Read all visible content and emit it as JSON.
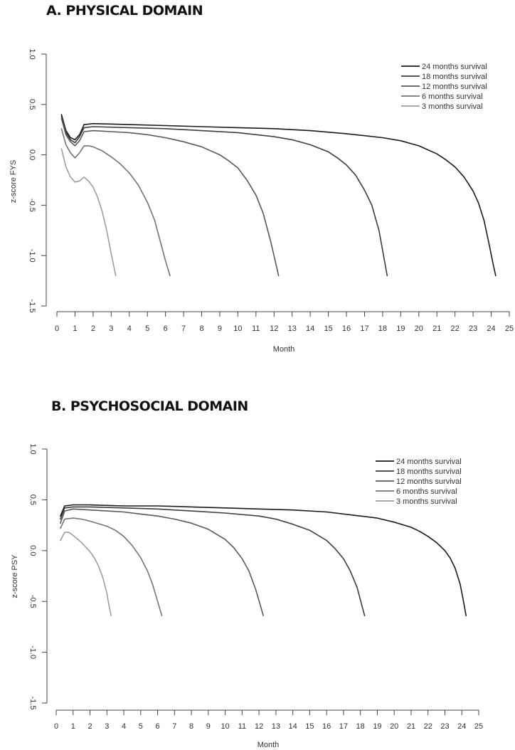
{
  "chart_data": [
    {
      "type": "line",
      "panel_title": "A. PHYSICAL DOMAIN",
      "xlabel": "Month",
      "ylabel": "z-score FYS",
      "xlim": [
        0,
        25
      ],
      "ylim": [
        -1.5,
        1.0
      ],
      "xticks": [
        "0",
        "1",
        "2",
        "3",
        "4",
        "5",
        "6",
        "7",
        "8",
        "9",
        "10",
        "11",
        "12",
        "13",
        "14",
        "15",
        "16",
        "17",
        "18",
        "19",
        "20",
        "21",
        "22",
        "23",
        "24",
        "25"
      ],
      "yticks": [
        "1.0",
        "0.5",
        "0.0",
        "-0.5",
        "-1.0",
        "-1.5"
      ],
      "legend_position": "top-right",
      "series": [
        {
          "name": "24 months survival",
          "color": "#1a1a1a",
          "x": [
            0.25,
            0.5,
            0.75,
            1,
            1.25,
            1.5,
            2,
            4,
            6,
            8,
            10,
            12,
            14,
            16,
            18,
            19,
            20,
            21,
            21.5,
            22,
            22.5,
            23,
            23.3,
            23.6,
            23.9,
            24.1,
            24.25
          ],
          "y": [
            0.4,
            0.24,
            0.17,
            0.15,
            0.2,
            0.3,
            0.31,
            0.3,
            0.29,
            0.28,
            0.27,
            0.26,
            0.24,
            0.21,
            0.17,
            0.14,
            0.09,
            0.01,
            -0.05,
            -0.12,
            -0.22,
            -0.36,
            -0.48,
            -0.65,
            -0.9,
            -1.08,
            -1.2
          ]
        },
        {
          "name": "18 months survival",
          "color": "#3d3d3d",
          "x": [
            0.25,
            0.5,
            0.75,
            1,
            1.25,
            1.5,
            2,
            4,
            6,
            8,
            10,
            12,
            13,
            14,
            15,
            15.5,
            16,
            16.5,
            17,
            17.4,
            17.8,
            18.1,
            18.25
          ],
          "y": [
            0.38,
            0.22,
            0.15,
            0.12,
            0.18,
            0.27,
            0.28,
            0.27,
            0.26,
            0.24,
            0.22,
            0.18,
            0.15,
            0.1,
            0.03,
            -0.03,
            -0.1,
            -0.2,
            -0.35,
            -0.5,
            -0.75,
            -1.05,
            -1.2
          ]
        },
        {
          "name": "12 months survival",
          "color": "#585858",
          "x": [
            0.25,
            0.5,
            0.75,
            1,
            1.25,
            1.5,
            2,
            3,
            4,
            5,
            6,
            7,
            8,
            9,
            9.5,
            10,
            10.5,
            11,
            11.4,
            11.8,
            12.1,
            12.25
          ],
          "y": [
            0.36,
            0.2,
            0.13,
            0.09,
            0.14,
            0.23,
            0.24,
            0.23,
            0.22,
            0.2,
            0.17,
            0.13,
            0.08,
            0.0,
            -0.06,
            -0.13,
            -0.25,
            -0.4,
            -0.58,
            -0.85,
            -1.08,
            -1.2
          ]
        },
        {
          "name": "6 months survival",
          "color": "#747474",
          "x": [
            0.25,
            0.5,
            0.75,
            1,
            1.25,
            1.5,
            1.75,
            2,
            2.5,
            3,
            3.5,
            4,
            4.5,
            5,
            5.4,
            5.7,
            6,
            6.25
          ],
          "y": [
            0.26,
            0.1,
            0.02,
            -0.03,
            0.02,
            0.09,
            0.09,
            0.08,
            0.04,
            -0.02,
            -0.09,
            -0.18,
            -0.3,
            -0.47,
            -0.65,
            -0.85,
            -1.05,
            -1.2
          ]
        },
        {
          "name": "3 months survival",
          "color": "#9e9e9e",
          "x": [
            0.25,
            0.5,
            0.75,
            1,
            1.25,
            1.5,
            1.75,
            2,
            2.25,
            2.5,
            2.75,
            3,
            3.25
          ],
          "y": [
            0.06,
            -0.12,
            -0.22,
            -0.27,
            -0.26,
            -0.22,
            -0.26,
            -0.32,
            -0.42,
            -0.56,
            -0.75,
            -0.98,
            -1.2
          ]
        }
      ]
    },
    {
      "type": "line",
      "panel_title": "B. PSYCHOSOCIAL DOMAIN",
      "xlabel": "Month",
      "ylabel": "z-score PSY",
      "xlim": [
        0,
        25
      ],
      "ylim": [
        -1.5,
        1.0
      ],
      "xticks": [
        "0",
        "1",
        "2",
        "3",
        "4",
        "5",
        "6",
        "7",
        "8",
        "9",
        "10",
        "11",
        "12",
        "13",
        "14",
        "15",
        "16",
        "17",
        "18",
        "19",
        "20",
        "21",
        "22",
        "23",
        "24",
        "25"
      ],
      "yticks": [
        "1.0",
        "0.5",
        "0.0",
        "-0.5",
        "-1.0",
        "-1.5"
      ],
      "legend_position": "top-right",
      "series": [
        {
          "name": "24 months survival",
          "color": "#1a1a1a",
          "x": [
            0.25,
            0.5,
            1,
            2,
            4,
            6,
            8,
            10,
            12,
            14,
            16,
            18,
            19,
            20,
            21,
            21.5,
            22,
            22.5,
            23,
            23.3,
            23.6,
            23.9,
            24.1,
            24.25
          ],
          "y": [
            0.34,
            0.44,
            0.45,
            0.45,
            0.44,
            0.44,
            0.43,
            0.42,
            0.41,
            0.4,
            0.38,
            0.34,
            0.32,
            0.28,
            0.23,
            0.19,
            0.14,
            0.08,
            0.0,
            -0.07,
            -0.17,
            -0.33,
            -0.5,
            -0.64
          ]
        },
        {
          "name": "18 months survival",
          "color": "#3d3d3d",
          "x": [
            0.25,
            0.5,
            1,
            2,
            4,
            6,
            8,
            10,
            12,
            13,
            14,
            15,
            16,
            16.5,
            17,
            17.4,
            17.8,
            18.1,
            18.25
          ],
          "y": [
            0.31,
            0.42,
            0.43,
            0.43,
            0.42,
            0.41,
            0.39,
            0.37,
            0.34,
            0.31,
            0.26,
            0.2,
            0.1,
            0.02,
            -0.08,
            -0.2,
            -0.36,
            -0.55,
            -0.64
          ]
        },
        {
          "name": "12 months survival",
          "color": "#585858",
          "x": [
            0.25,
            0.5,
            1,
            2,
            3,
            4,
            5,
            6,
            7,
            8,
            9,
            10,
            10.5,
            11,
            11.4,
            11.8,
            12.05,
            12.25
          ],
          "y": [
            0.27,
            0.39,
            0.41,
            0.4,
            0.39,
            0.38,
            0.36,
            0.34,
            0.31,
            0.27,
            0.21,
            0.11,
            0.03,
            -0.08,
            -0.2,
            -0.38,
            -0.52,
            -0.64
          ]
        },
        {
          "name": "6 months survival",
          "color": "#747474",
          "x": [
            0.25,
            0.5,
            1,
            1.5,
            2,
            3,
            3.5,
            4,
            4.5,
            5,
            5.4,
            5.7,
            6,
            6.25
          ],
          "y": [
            0.22,
            0.31,
            0.32,
            0.31,
            0.29,
            0.24,
            0.2,
            0.14,
            0.05,
            -0.07,
            -0.2,
            -0.33,
            -0.5,
            -0.64
          ]
        },
        {
          "name": "3 months survival",
          "color": "#9e9e9e",
          "x": [
            0.25,
            0.5,
            0.75,
            1,
            1.5,
            2,
            2.25,
            2.5,
            2.75,
            3,
            3.1,
            3.25
          ],
          "y": [
            0.1,
            0.18,
            0.18,
            0.15,
            0.08,
            -0.01,
            -0.07,
            -0.15,
            -0.26,
            -0.42,
            -0.52,
            -0.64
          ]
        }
      ]
    }
  ]
}
